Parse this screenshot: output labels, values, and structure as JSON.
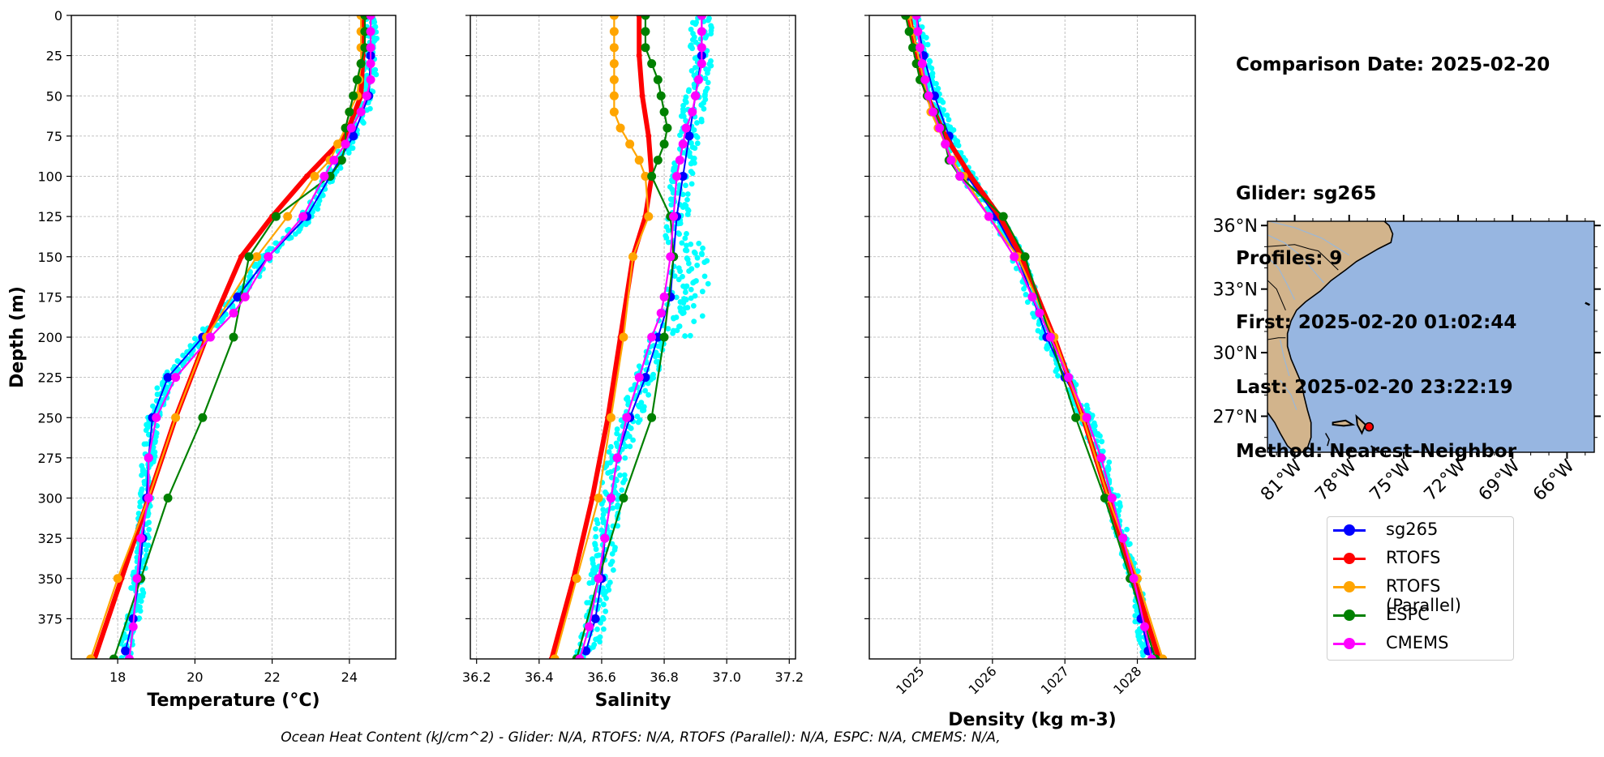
{
  "info": {
    "comparison_date": "Comparison Date: 2025-02-20",
    "glider": "Glider: sg265",
    "profiles": "Profiles: 9",
    "first": "First: 2025-02-20 01:02:44",
    "last": "Last: 2025-02-20 23:22:19",
    "method": "Method: Nearest-Neighbor"
  },
  "footer": "Ocean Heat Content (kJ/cm^2) - Glider: N/A,  RTOFS: N/A,  RTOFS (Parallel): N/A,  ESPC: N/A,  CMEMS: N/A,",
  "legend": [
    {
      "name": "sg265",
      "color": "#0000ff"
    },
    {
      "name": "RTOFS",
      "color": "#ff0000"
    },
    {
      "name": "RTOFS (Parallel)",
      "color": "#ffa500"
    },
    {
      "name": "ESPC",
      "color": "#008000"
    },
    {
      "name": "CMEMS",
      "color": "#ff00ff"
    }
  ],
  "colors": {
    "glider_scatter": "#00ffff",
    "land": "#d2b48c",
    "ocean": "#97b6e1"
  },
  "map": {
    "lat_ticks": [
      "36°N",
      "33°N",
      "30°N",
      "27°N"
    ],
    "lon_ticks": [
      "81°W",
      "78°W",
      "75°W",
      "72°W",
      "69°W",
      "66°W"
    ],
    "extent": {
      "lon": [
        -82.5,
        -64.5
      ],
      "lat": [
        25.3,
        36.2
      ]
    },
    "glider_position": {
      "lon": -76.9,
      "lat": 26.5
    }
  },
  "chart_data": [
    {
      "type": "line",
      "panel": "temperature",
      "xlabel": "Temperature (°C)",
      "ylabel": "Depth (m)",
      "xlim": [
        16.8,
        25.2
      ],
      "ylim": [
        400,
        0
      ],
      "x_ticks": [
        "18",
        "20",
        "22",
        "24"
      ],
      "y_ticks": [
        "0",
        "25",
        "50",
        "75",
        "100",
        "125",
        "150",
        "175",
        "200",
        "225",
        "250",
        "275",
        "300",
        "325",
        "350",
        "375"
      ],
      "grid": true,
      "series": [
        {
          "name": "sg265",
          "depth": [
            0,
            25,
            50,
            75,
            100,
            125,
            150,
            175,
            200,
            225,
            250,
            275,
            300,
            325,
            350,
            375,
            395
          ],
          "values": [
            24.55,
            24.55,
            24.5,
            24.1,
            23.5,
            22.9,
            21.9,
            21.1,
            20.2,
            19.3,
            18.9,
            18.8,
            18.75,
            18.65,
            18.55,
            18.4,
            18.2
          ]
        },
        {
          "name": "RTOFS",
          "depth": [
            0,
            25,
            50,
            75,
            100,
            125,
            150,
            200,
            250,
            300,
            350,
            400
          ],
          "values": [
            24.35,
            24.35,
            24.3,
            23.9,
            22.9,
            22.0,
            21.2,
            20.3,
            19.5,
            18.8,
            18.1,
            17.4
          ]
        },
        {
          "name": "RTOFS (Parallel)",
          "depth": [
            0,
            10,
            20,
            30,
            40,
            50,
            60,
            70,
            80,
            90,
            100,
            125,
            150,
            200,
            250,
            300,
            350,
            400
          ],
          "values": [
            24.3,
            24.3,
            24.3,
            24.3,
            24.25,
            24.2,
            24.0,
            23.9,
            23.7,
            23.5,
            23.1,
            22.4,
            21.6,
            20.3,
            19.5,
            18.8,
            18.0,
            17.3
          ]
        },
        {
          "name": "ESPC",
          "depth": [
            0,
            10,
            20,
            30,
            40,
            50,
            60,
            70,
            80,
            90,
            100,
            125,
            150,
            200,
            250,
            300,
            350,
            400
          ],
          "values": [
            24.4,
            24.4,
            24.4,
            24.3,
            24.2,
            24.1,
            24.0,
            23.9,
            23.9,
            23.8,
            23.5,
            22.1,
            21.4,
            21.0,
            20.2,
            19.3,
            18.6,
            17.9
          ]
        },
        {
          "name": "CMEMS",
          "depth": [
            0,
            10,
            20,
            30,
            40,
            50,
            60,
            70,
            80,
            90,
            100,
            125,
            150,
            175,
            185,
            200,
            225,
            250,
            275,
            300,
            325,
            350,
            380,
            400
          ],
          "values": [
            24.55,
            24.55,
            24.55,
            24.55,
            24.55,
            24.45,
            24.3,
            24.05,
            23.9,
            23.6,
            23.35,
            22.8,
            21.9,
            21.3,
            21.0,
            20.4,
            19.5,
            19.0,
            18.8,
            18.8,
            18.6,
            18.5,
            18.4,
            18.3
          ]
        }
      ]
    },
    {
      "type": "line",
      "panel": "salinity",
      "xlabel": "Salinity",
      "xlim": [
        36.18,
        37.22
      ],
      "ylim": [
        400,
        0
      ],
      "x_ticks": [
        "36.2",
        "36.4",
        "36.6",
        "36.8",
        "37.0",
        "37.2"
      ],
      "grid": true,
      "series": [
        {
          "name": "sg265",
          "depth": [
            0,
            25,
            50,
            75,
            100,
            125,
            150,
            175,
            200,
            225,
            250,
            275,
            300,
            325,
            350,
            375,
            395
          ],
          "values": [
            36.92,
            36.92,
            36.9,
            36.88,
            36.86,
            36.84,
            36.83,
            36.82,
            36.78,
            36.74,
            36.69,
            36.65,
            36.63,
            36.61,
            36.6,
            36.58,
            36.55
          ]
        },
        {
          "name": "RTOFS",
          "depth": [
            0,
            25,
            50,
            75,
            100,
            125,
            150,
            200,
            250,
            300,
            350,
            400
          ],
          "values": [
            36.72,
            36.72,
            36.73,
            36.75,
            36.76,
            36.74,
            36.7,
            36.66,
            36.62,
            36.57,
            36.51,
            36.44
          ]
        },
        {
          "name": "RTOFS (Parallel)",
          "depth": [
            0,
            10,
            20,
            30,
            40,
            50,
            60,
            70,
            80,
            90,
            100,
            125,
            150,
            200,
            250,
            300,
            350,
            400
          ],
          "values": [
            36.64,
            36.64,
            36.64,
            36.64,
            36.64,
            36.64,
            36.64,
            36.66,
            36.69,
            36.72,
            36.74,
            36.75,
            36.7,
            36.67,
            36.63,
            36.59,
            36.52,
            36.45
          ]
        },
        {
          "name": "ESPC",
          "depth": [
            0,
            10,
            20,
            30,
            40,
            50,
            60,
            70,
            80,
            90,
            100,
            125,
            150,
            200,
            250,
            300,
            350,
            400
          ],
          "values": [
            36.74,
            36.74,
            36.74,
            36.76,
            36.78,
            36.79,
            36.8,
            36.81,
            36.8,
            36.78,
            36.76,
            36.82,
            36.83,
            36.8,
            36.76,
            36.67,
            36.59,
            36.52
          ]
        },
        {
          "name": "CMEMS",
          "depth": [
            0,
            10,
            20,
            30,
            40,
            50,
            60,
            70,
            80,
            90,
            100,
            125,
            150,
            175,
            185,
            200,
            225,
            250,
            275,
            300,
            325,
            350,
            380,
            400
          ],
          "values": [
            36.92,
            36.92,
            36.92,
            36.92,
            36.91,
            36.9,
            36.89,
            36.87,
            36.86,
            36.85,
            36.84,
            36.83,
            36.82,
            36.8,
            36.79,
            36.76,
            36.72,
            36.68,
            36.65,
            36.63,
            36.61,
            36.59,
            36.56,
            36.53
          ]
        }
      ]
    },
    {
      "type": "line",
      "panel": "density",
      "xlabel": "Density (kg m-3)",
      "xlim": [
        1024.3,
        1028.8
      ],
      "ylim": [
        400,
        0
      ],
      "x_ticks": [
        "1025",
        "1026",
        "1027",
        "1028"
      ],
      "grid": true,
      "series": [
        {
          "name": "sg265",
          "depth": [
            0,
            25,
            50,
            75,
            100,
            125,
            150,
            175,
            200,
            225,
            250,
            275,
            300,
            325,
            350,
            375,
            395
          ],
          "values": [
            1024.95,
            1025.05,
            1025.2,
            1025.4,
            1025.65,
            1026.05,
            1026.35,
            1026.55,
            1026.75,
            1027.0,
            1027.3,
            1027.5,
            1027.65,
            1027.8,
            1027.95,
            1028.05,
            1028.15
          ]
        },
        {
          "name": "RTOFS",
          "depth": [
            0,
            25,
            50,
            75,
            100,
            125,
            150,
            200,
            250,
            300,
            350,
            400
          ],
          "values": [
            1024.85,
            1024.95,
            1025.1,
            1025.35,
            1025.7,
            1026.1,
            1026.4,
            1026.85,
            1027.25,
            1027.6,
            1027.95,
            1028.3
          ]
        },
        {
          "name": "RTOFS (Parallel)",
          "depth": [
            0,
            10,
            20,
            30,
            40,
            50,
            60,
            70,
            80,
            90,
            100,
            125,
            150,
            200,
            250,
            300,
            350,
            400
          ],
          "values": [
            1024.85,
            1024.9,
            1024.95,
            1025.0,
            1025.05,
            1025.1,
            1025.15,
            1025.25,
            1025.35,
            1025.45,
            1025.6,
            1025.95,
            1026.35,
            1026.85,
            1027.25,
            1027.6,
            1028.0,
            1028.35
          ]
        },
        {
          "name": "ESPC",
          "depth": [
            0,
            10,
            20,
            30,
            40,
            50,
            60,
            70,
            80,
            90,
            100,
            125,
            150,
            200,
            250,
            300,
            350,
            400
          ],
          "values": [
            1024.8,
            1024.85,
            1024.9,
            1024.95,
            1025.0,
            1025.1,
            1025.2,
            1025.3,
            1025.35,
            1025.4,
            1025.55,
            1026.15,
            1026.45,
            1026.8,
            1027.15,
            1027.55,
            1027.9,
            1028.25
          ]
        },
        {
          "name": "CMEMS",
          "depth": [
            0,
            10,
            20,
            30,
            40,
            50,
            60,
            70,
            80,
            90,
            100,
            125,
            150,
            175,
            185,
            200,
            225,
            250,
            275,
            300,
            325,
            350,
            380,
            400
          ],
          "values": [
            1024.95,
            1024.97,
            1025.0,
            1025.03,
            1025.07,
            1025.12,
            1025.18,
            1025.27,
            1025.35,
            1025.43,
            1025.55,
            1025.95,
            1026.3,
            1026.55,
            1026.65,
            1026.8,
            1027.05,
            1027.3,
            1027.5,
            1027.65,
            1027.8,
            1027.95,
            1028.1,
            1028.2
          ]
        }
      ]
    }
  ]
}
